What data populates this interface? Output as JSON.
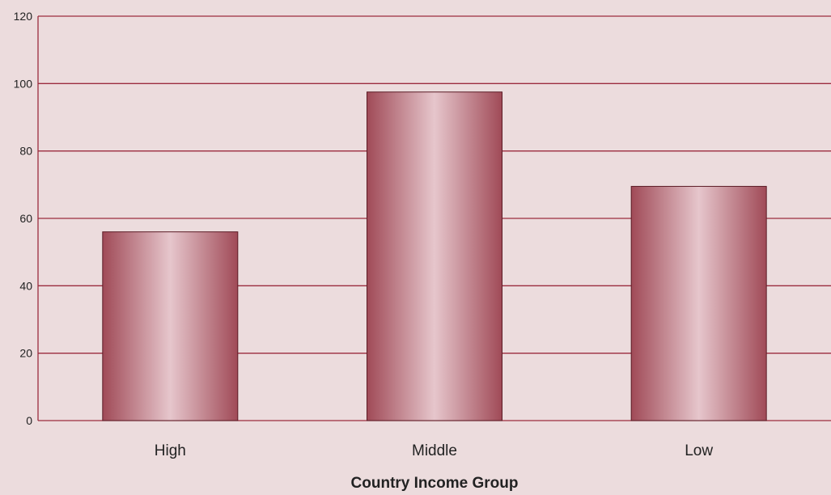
{
  "chart_data": {
    "type": "bar",
    "title": "",
    "xlabel": "Country Income Group",
    "ylabel": "",
    "categories": [
      "High",
      "Middle",
      "Low"
    ],
    "values": [
      56,
      97.5,
      69.5
    ],
    "ylim": [
      0,
      120
    ],
    "yticks": [
      0,
      20,
      40,
      60,
      80,
      100,
      120
    ],
    "grid": true,
    "legend": "none",
    "colors": {
      "background": "#ecdcdd",
      "gridline": "#9b2c3e",
      "axis": "#9b2c3e",
      "bar_edge": "#5a1a24",
      "bar_dark": "#a04a57",
      "bar_light": "#e6c6cc"
    }
  }
}
